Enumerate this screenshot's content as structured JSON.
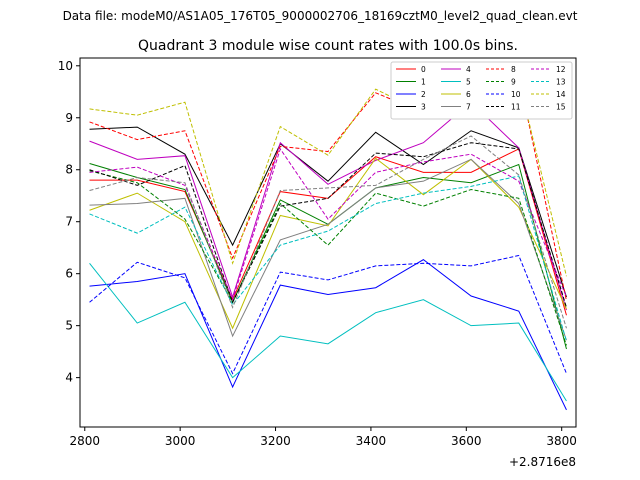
{
  "figure": {
    "suptitle": "Data file: modeM0/AS1A05_176T05_9000002706_18169cztM0_level2_quad_clean.evt"
  },
  "chart_data": {
    "type": "line",
    "title": "Quadrant 3 module wise count rates with 100.0s bins.",
    "xlabel": "",
    "ylabel": "",
    "x_offset_label": "+2.8716e8",
    "x": [
      2810,
      2910,
      3010,
      3110,
      3210,
      3310,
      3410,
      3510,
      3610,
      3710,
      3810
    ],
    "xlim": [
      2790,
      3830
    ],
    "ylim": [
      3.05,
      10.15
    ],
    "x_ticks": [
      2800,
      3000,
      3200,
      3400,
      3600,
      3800
    ],
    "y_ticks": [
      4,
      5,
      6,
      7,
      8,
      9,
      10
    ],
    "grid": false,
    "legend": {
      "placement": "top-right",
      "columns": 4
    },
    "series": [
      {
        "name": "0",
        "color": "#ff0000",
        "dash": "solid",
        "values": [
          7.8,
          7.8,
          7.58,
          5.5,
          7.58,
          7.45,
          8.25,
          7.95,
          7.95,
          8.4,
          5.2
        ]
      },
      {
        "name": "1",
        "color": "#008000",
        "dash": "solid",
        "values": [
          8.12,
          7.85,
          7.62,
          5.45,
          7.42,
          6.95,
          7.65,
          7.85,
          7.75,
          8.1,
          4.55
        ]
      },
      {
        "name": "2",
        "color": "#0000ff",
        "dash": "solid",
        "values": [
          5.76,
          5.85,
          6.0,
          3.82,
          5.78,
          5.6,
          5.73,
          6.27,
          5.57,
          5.28,
          3.38
        ]
      },
      {
        "name": "3",
        "color": "#000000",
        "dash": "solid",
        "values": [
          8.78,
          8.82,
          8.3,
          6.55,
          8.5,
          7.78,
          8.72,
          8.1,
          8.75,
          8.42,
          5.55
        ]
      },
      {
        "name": "4",
        "color": "#bf00bf",
        "dash": "solid",
        "values": [
          8.55,
          8.2,
          8.27,
          5.55,
          8.52,
          7.72,
          8.18,
          8.52,
          9.3,
          8.42,
          5.3
        ]
      },
      {
        "name": "5",
        "color": "#00bfbf",
        "dash": "solid",
        "values": [
          6.2,
          5.05,
          5.45,
          4.0,
          4.8,
          4.65,
          5.25,
          5.5,
          5.0,
          5.05,
          3.55
        ]
      },
      {
        "name": "6",
        "color": "#bfbf00",
        "dash": "solid",
        "values": [
          7.22,
          7.55,
          7.0,
          4.95,
          7.12,
          6.92,
          8.22,
          7.52,
          8.2,
          7.28,
          5.32
        ]
      },
      {
        "name": "7",
        "color": "#808080",
        "dash": "solid",
        "values": [
          7.32,
          7.35,
          7.45,
          4.8,
          6.65,
          6.95,
          7.65,
          7.78,
          8.2,
          7.35,
          4.72
        ]
      },
      {
        "name": "8",
        "color": "#ff0000",
        "dash": "dashed",
        "values": [
          8.92,
          8.58,
          8.75,
          6.3,
          8.45,
          8.35,
          9.48,
          9.1,
          9.4,
          9.8,
          5.48
        ]
      },
      {
        "name": "9",
        "color": "#008000",
        "dash": "dashed",
        "values": [
          7.98,
          7.75,
          7.05,
          5.45,
          7.35,
          6.55,
          7.55,
          7.3,
          7.62,
          7.45,
          4.62
        ]
      },
      {
        "name": "10",
        "color": "#0000ff",
        "dash": "dashed",
        "values": [
          5.45,
          6.22,
          5.92,
          4.08,
          6.03,
          5.88,
          6.15,
          6.2,
          6.15,
          6.35,
          4.08
        ]
      },
      {
        "name": "11",
        "color": "#000000",
        "dash": "dashed",
        "values": [
          8.0,
          7.7,
          8.08,
          5.45,
          7.3,
          7.45,
          8.32,
          8.25,
          8.52,
          8.4,
          5.35
        ]
      },
      {
        "name": "12",
        "color": "#bf00bf",
        "dash": "dashed",
        "values": [
          7.95,
          8.05,
          7.7,
          5.5,
          8.4,
          7.05,
          7.95,
          8.15,
          8.3,
          7.78,
          5.55
        ]
      },
      {
        "name": "13",
        "color": "#00bfbf",
        "dash": "dashed",
        "values": [
          7.15,
          6.78,
          7.28,
          5.4,
          6.55,
          6.82,
          7.35,
          7.55,
          7.68,
          7.88,
          4.7
        ]
      },
      {
        "name": "14",
        "color": "#bfbf00",
        "dash": "dashed",
        "values": [
          9.17,
          9.05,
          9.3,
          6.2,
          8.83,
          8.28,
          9.55,
          9.1,
          9.7,
          9.72,
          5.95
        ]
      },
      {
        "name": "15",
        "color": "#808080",
        "dash": "dashed",
        "values": [
          7.6,
          7.85,
          7.75,
          5.35,
          7.6,
          7.65,
          7.7,
          8.2,
          8.65,
          7.9,
          4.95
        ]
      }
    ]
  }
}
